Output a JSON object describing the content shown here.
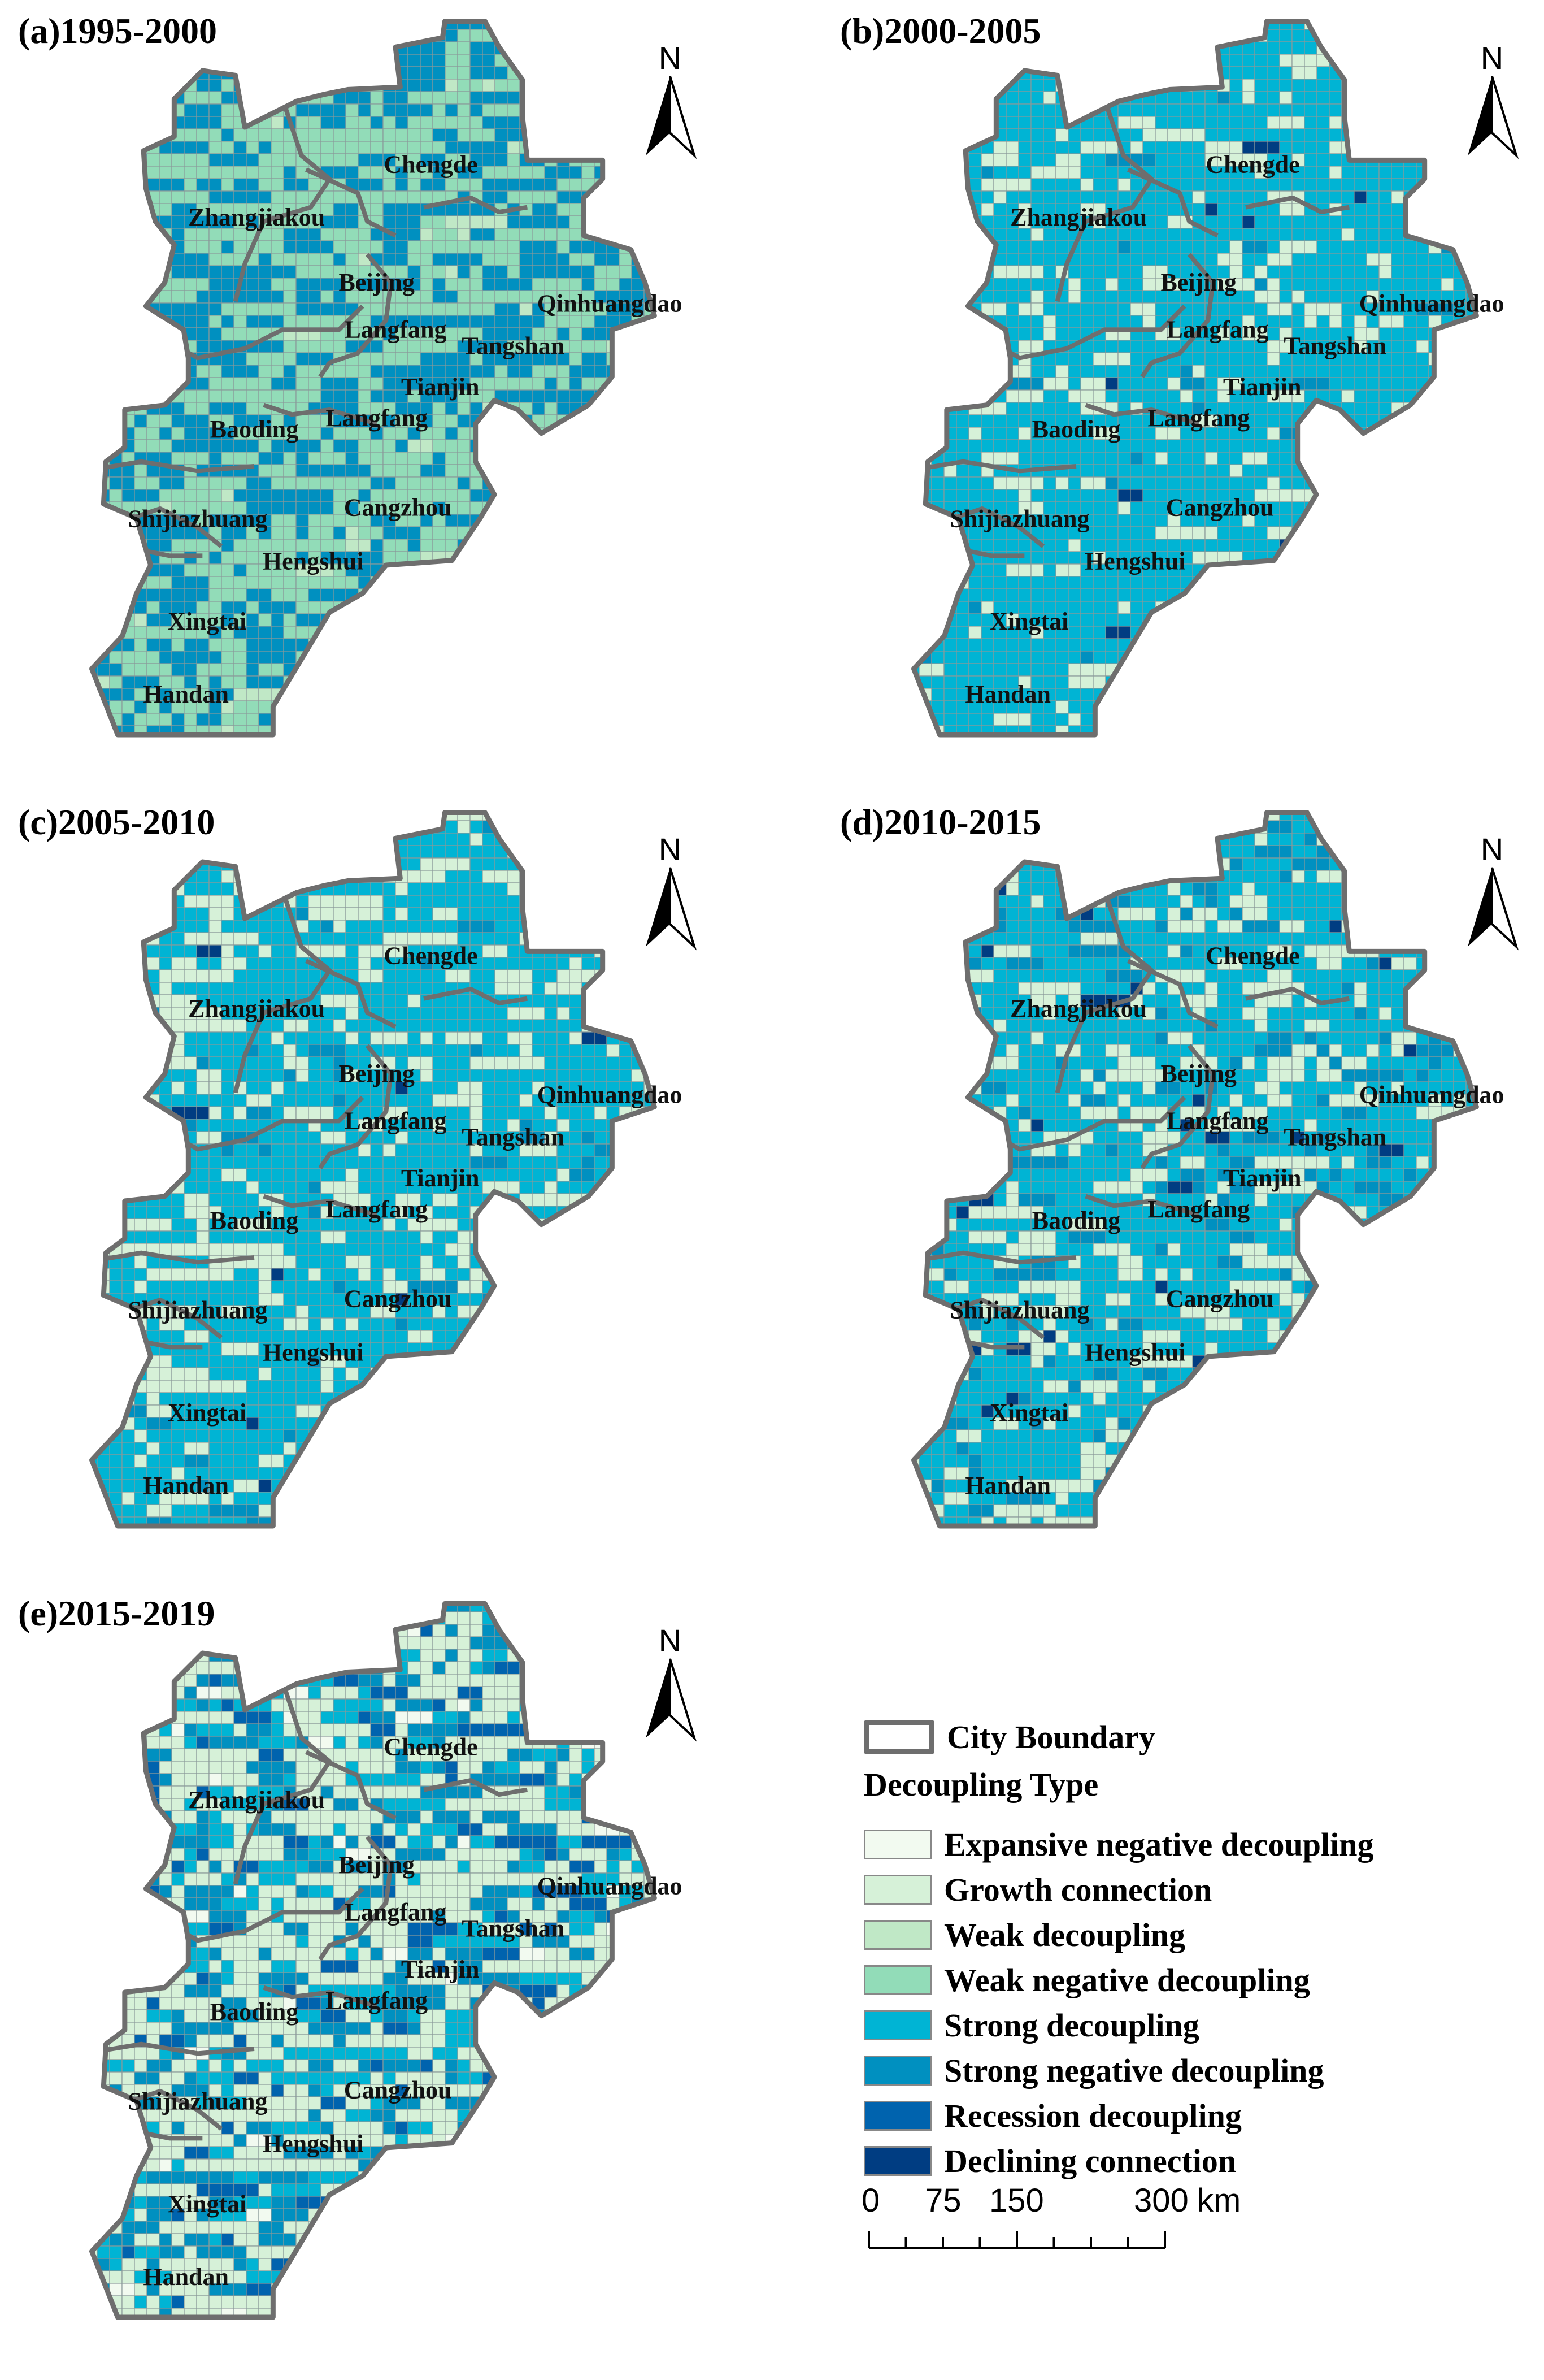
{
  "panels": [
    {
      "id": "a",
      "title": "(a)1995-2000",
      "mix": {
        "Weak negative decoupling": 0.5,
        "Strong negative decoupling": 0.47,
        "Weak decoupling": 0.03
      }
    },
    {
      "id": "b",
      "title": "(b)2000-2005",
      "mix": {
        "Strong decoupling": 0.78,
        "Growth connection": 0.19,
        "Strong negative decoupling": 0.02,
        "Declining connection": 0.01
      }
    },
    {
      "id": "c",
      "title": "(c)2005-2010",
      "mix": {
        "Strong decoupling": 0.68,
        "Growth connection": 0.27,
        "Strong negative decoupling": 0.04,
        "Declining connection": 0.01
      }
    },
    {
      "id": "d",
      "title": "(d)2010-2015",
      "mix": {
        "Strong decoupling": 0.62,
        "Strong negative decoupling": 0.1,
        "Growth connection": 0.26,
        "Declining connection": 0.02
      }
    },
    {
      "id": "e",
      "title": "(e)2015-2019",
      "mix": {
        "Growth connection": 0.48,
        "Strong decoupling": 0.2,
        "Strong negative decoupling": 0.22,
        "Recession decoupling": 0.07,
        "Expansive negative decoupling": 0.03
      }
    }
  ],
  "cities": [
    "Chengde",
    "Zhangjiakou",
    "Beijing",
    "Langfang",
    "Tangshan",
    "Qinhuangdao",
    "Tianjin",
    "Langfang",
    "Baoding",
    "Cangzhou",
    "Shijiazhuang",
    "Hengshui",
    "Xingtai",
    "Handan"
  ],
  "north_arrow": {
    "label": "N"
  },
  "legend": {
    "boundary_label": "City Boundary",
    "type_title": "Decoupling Type",
    "items": [
      {
        "label": "Expansive negative decoupling",
        "color": "#f2faf0"
      },
      {
        "label": "Growth connection",
        "color": "#d6f1d8"
      },
      {
        "label": "Weak decoupling",
        "color": "#c0e8c6"
      },
      {
        "label": "Weak negative decoupling",
        "color": "#92dcb8"
      },
      {
        "label": "Strong decoupling",
        "color": "#00b4d4"
      },
      {
        "label": "Strong negative decoupling",
        "color": "#0090c0"
      },
      {
        "label": "Recession decoupling",
        "color": "#0063ae"
      },
      {
        "label": "Declining connection",
        "color": "#003d82"
      }
    ]
  },
  "scale_bar": {
    "ticks": [
      "0",
      "75",
      "150",
      "300"
    ],
    "unit": "km"
  },
  "boundary_color": "#6e6e6e",
  "grid_line_color": "#8a9a9a"
}
